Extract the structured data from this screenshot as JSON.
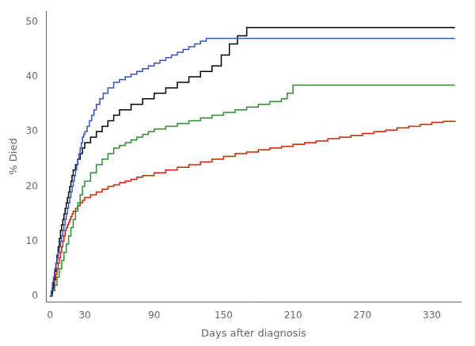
{
  "chart_data": {
    "type": "line",
    "line_style": "step",
    "xlabel": "Days after diagnosis",
    "ylabel": "% Died",
    "xlim": [
      -3,
      355
    ],
    "ylim": [
      -1,
      52
    ],
    "xticks": [
      0,
      30,
      90,
      150,
      210,
      270,
      330
    ],
    "yticks": [
      0,
      10,
      20,
      30,
      40,
      50
    ],
    "grid": false,
    "series": [
      {
        "color": "#3355bb",
        "x": [
          0,
          1,
          2,
          3,
          4,
          5,
          6,
          7,
          8,
          9,
          10,
          11,
          12,
          13,
          14,
          15,
          16,
          17,
          18,
          19,
          20,
          21,
          22,
          23,
          24,
          25,
          26,
          27,
          28,
          29,
          30,
          32,
          34,
          36,
          38,
          40,
          43,
          46,
          50,
          55,
          60,
          65,
          70,
          75,
          80,
          85,
          90,
          95,
          100,
          105,
          110,
          115,
          120,
          125,
          130,
          135,
          140,
          180,
          220,
          260,
          350
        ],
        "values": [
          0,
          1,
          2.5,
          3.5,
          5,
          6,
          7,
          8,
          9,
          10,
          11,
          12,
          13,
          14,
          15,
          16,
          17,
          18,
          19,
          20,
          21,
          22,
          23,
          24,
          25,
          26,
          27,
          28,
          29,
          29.5,
          30,
          31,
          32,
          33,
          34,
          35,
          36,
          37,
          38,
          39,
          39.5,
          40,
          40.5,
          41,
          41.5,
          42,
          42.5,
          43,
          43.5,
          44,
          44.5,
          45,
          45.5,
          46,
          46.5,
          47,
          47,
          47,
          47,
          47,
          47
        ]
      },
      {
        "color": "#000000",
        "x": [
          0,
          1,
          2,
          3,
          4,
          5,
          6,
          7,
          8,
          9,
          10,
          11,
          12,
          13,
          14,
          15,
          16,
          17,
          18,
          19,
          20,
          22,
          24,
          26,
          28,
          30,
          35,
          40,
          45,
          50,
          55,
          60,
          70,
          80,
          90,
          100,
          110,
          120,
          130,
          140,
          148,
          155,
          162,
          170,
          180,
          220,
          260,
          350
        ],
        "values": [
          0,
          0.5,
          1.5,
          3,
          4.5,
          6,
          7.5,
          9,
          10.5,
          12,
          13,
          14,
          15,
          16,
          17,
          18,
          19,
          20,
          21,
          22,
          23,
          24,
          25,
          26,
          27,
          28,
          29,
          30,
          31,
          32,
          33,
          34,
          35,
          36,
          37,
          38,
          39,
          40,
          41,
          42,
          44,
          46,
          47.5,
          49,
          49,
          49,
          49,
          49
        ]
      },
      {
        "color": "#2e8b2e",
        "x": [
          0,
          2,
          4,
          6,
          8,
          10,
          12,
          14,
          16,
          18,
          20,
          22,
          24,
          26,
          28,
          30,
          35,
          40,
          45,
          50,
          55,
          60,
          65,
          70,
          75,
          80,
          85,
          90,
          100,
          110,
          120,
          130,
          140,
          150,
          160,
          170,
          180,
          190,
          200,
          205,
          210,
          215,
          250,
          350
        ],
        "values": [
          0,
          1,
          2,
          3.5,
          5,
          6.5,
          8,
          9.5,
          11,
          12.5,
          14,
          15.5,
          17,
          18.5,
          20,
          21,
          22.5,
          24,
          25,
          26,
          27,
          27.5,
          28,
          28.5,
          29,
          29.5,
          30,
          30.5,
          31,
          31.5,
          32,
          32.5,
          33,
          33.5,
          34,
          34.5,
          35,
          35.5,
          36,
          37,
          38.5,
          38.5,
          38.5,
          38.5
        ]
      },
      {
        "color": "#cc2200",
        "x": [
          0,
          1,
          2,
          3,
          4,
          5,
          6,
          7,
          8,
          9,
          10,
          11,
          12,
          13,
          14,
          15,
          16,
          17,
          18,
          19,
          20,
          22,
          24,
          26,
          28,
          30,
          35,
          40,
          45,
          50,
          55,
          60,
          65,
          70,
          75,
          80,
          90,
          100,
          110,
          120,
          130,
          140,
          150,
          160,
          170,
          180,
          190,
          200,
          210,
          220,
          230,
          240,
          250,
          260,
          270,
          280,
          290,
          300,
          310,
          320,
          330,
          340,
          350
        ],
        "values": [
          0,
          0.5,
          1,
          2,
          3,
          4,
          5,
          6,
          7,
          8,
          9,
          10,
          11,
          12,
          12.5,
          13,
          13.5,
          14,
          14.5,
          15,
          15.5,
          16,
          16.5,
          17,
          17.5,
          18,
          18.5,
          19,
          19.5,
          20,
          20.3,
          20.7,
          21,
          21.3,
          21.7,
          22,
          22.5,
          23,
          23.5,
          24,
          24.5,
          25,
          25.5,
          26,
          26.3,
          26.7,
          27,
          27.3,
          27.7,
          28,
          28.3,
          28.7,
          29,
          29.3,
          29.7,
          30,
          30.3,
          30.7,
          31,
          31.3,
          31.7,
          31.9,
          32
        ]
      }
    ]
  }
}
